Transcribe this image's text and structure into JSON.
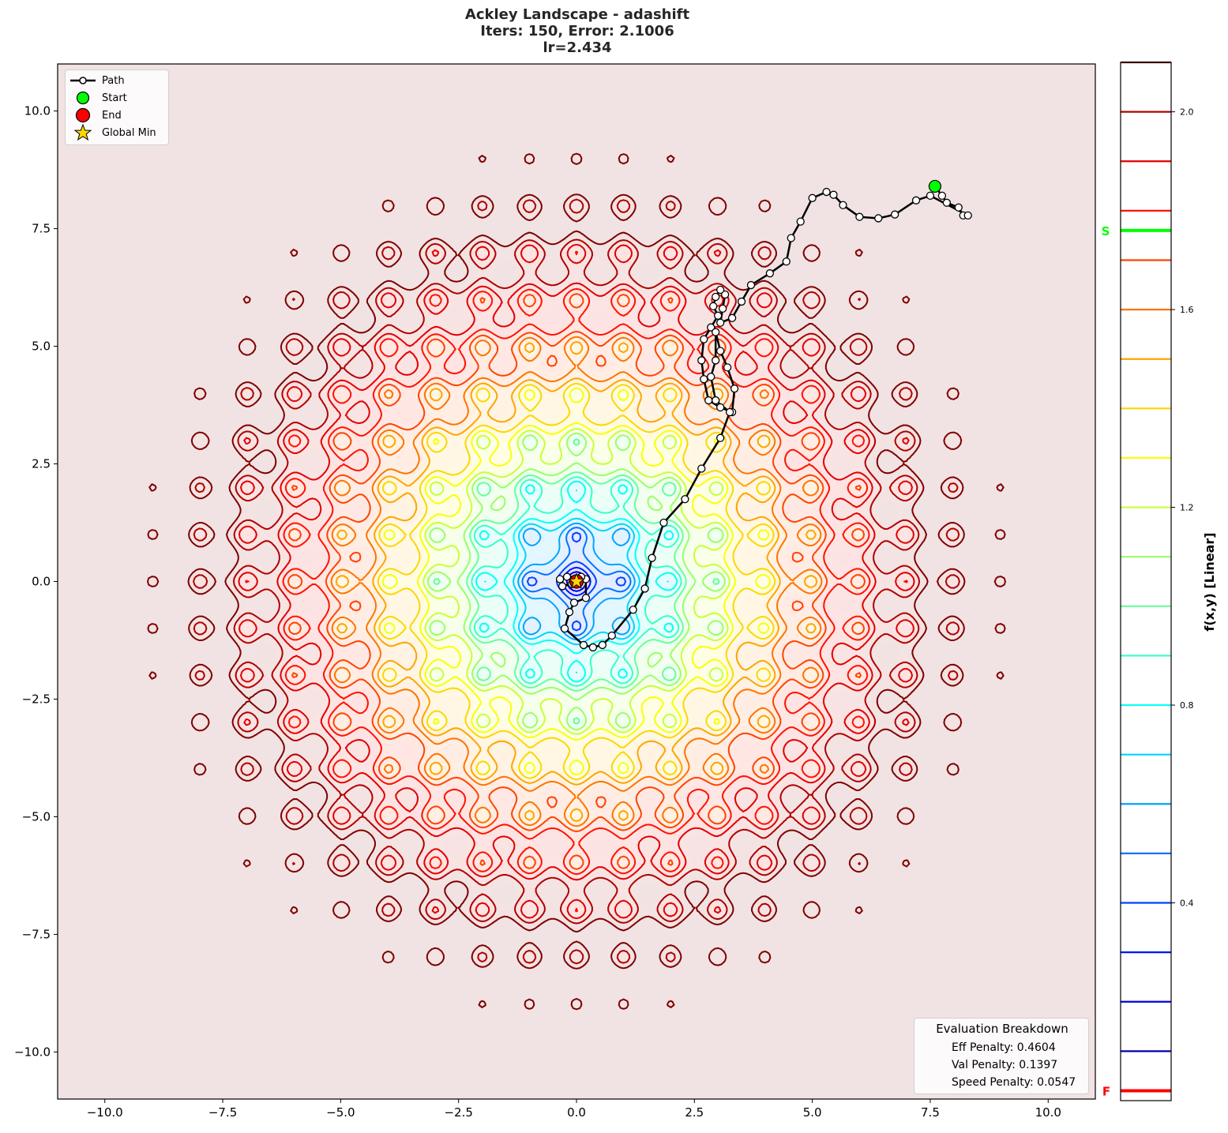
{
  "title": {
    "line1": "Ackley Landscape - adashift",
    "line2": "Iters: 150, Error: 2.1006",
    "line3": "lr=2.434"
  },
  "legend": {
    "items": [
      {
        "label": "Path",
        "symbol": "line-with-white-circle",
        "color": "#000000"
      },
      {
        "label": "Start",
        "symbol": "circle",
        "color": "#00ff00"
      },
      {
        "label": "End",
        "symbol": "circle",
        "color": "#ff0000"
      },
      {
        "label": "Global Min",
        "symbol": "star",
        "color": "#ffd700"
      }
    ]
  },
  "evaluation": {
    "header": "Evaluation Breakdown",
    "rows": [
      "Eff Penalty: 0.4604",
      "Val Penalty: 0.1397",
      "Speed Penalty: 0.0547"
    ]
  },
  "colorbar": {
    "label": "f(x,y) [Linear]",
    "ticks": [
      "2.0",
      "1.6",
      "1.2",
      "0.8",
      "0.4"
    ],
    "start_marker": "S",
    "final_marker": "F",
    "start_color": "#00ff00",
    "final_color": "#ff0000"
  },
  "axes": {
    "x_ticks": [
      "−10.0",
      "−7.5",
      "−5.0",
      "−2.5",
      "0.0",
      "2.5",
      "5.0",
      "7.5",
      "10.0"
    ],
    "y_ticks": [
      "10.0",
      "7.5",
      "5.0",
      "2.5",
      "0.0",
      "−2.5",
      "−5.0",
      "−7.5",
      "−10.0"
    ]
  },
  "chart_data": {
    "type": "contour",
    "title": "Ackley Landscape - adashift\nIters: 150, Error: 2.1006\nlr=2.434",
    "function": "Ackley (scaled, linear)",
    "xlabel": "",
    "ylabel": "",
    "xlim": [
      -11,
      11
    ],
    "ylim": [
      -11,
      11
    ],
    "x_ticks": [
      -10.0,
      -7.5,
      -5.0,
      -2.5,
      0.0,
      2.5,
      5.0,
      7.5,
      10.0
    ],
    "y_ticks": [
      -10.0,
      -7.5,
      -5.0,
      -2.5,
      0.0,
      2.5,
      5.0,
      7.5,
      10.0
    ],
    "grid": false,
    "colormap": "jet",
    "colorbar": {
      "label": "f(x,y) [Linear]",
      "ticks": [
        0.4,
        0.8,
        1.2,
        1.6,
        2.0
      ],
      "range": [
        0.0,
        2.1
      ],
      "levels": [
        0.1,
        0.2,
        0.3,
        0.4,
        0.5,
        0.6,
        0.7,
        0.8,
        0.9,
        1.0,
        1.1,
        1.2,
        1.3,
        1.4,
        1.5,
        1.6,
        1.7,
        1.8,
        1.9,
        2.0,
        2.1
      ],
      "start_value": 1.76,
      "final_value": 0.02
    },
    "iterations": 150,
    "error": 2.1006,
    "learning_rate": 2.434,
    "start": [
      7.6,
      8.4
    ],
    "end": [
      0.0,
      0.0
    ],
    "global_min": [
      0.0,
      0.0
    ],
    "path": [
      [
        7.6,
        8.4
      ],
      [
        7.75,
        8.2
      ],
      [
        7.85,
        8.05
      ],
      [
        8.1,
        7.95
      ],
      [
        8.2,
        7.78
      ],
      [
        8.3,
        7.78
      ],
      [
        7.5,
        8.2
      ],
      [
        7.2,
        8.1
      ],
      [
        6.75,
        7.8
      ],
      [
        6.4,
        7.72
      ],
      [
        6.0,
        7.75
      ],
      [
        5.65,
        8.0
      ],
      [
        5.45,
        8.22
      ],
      [
        5.3,
        8.28
      ],
      [
        5.0,
        8.15
      ],
      [
        4.75,
        7.65
      ],
      [
        4.55,
        7.3
      ],
      [
        4.45,
        6.8
      ],
      [
        4.1,
        6.55
      ],
      [
        3.7,
        6.3
      ],
      [
        3.5,
        5.95
      ],
      [
        3.3,
        5.6
      ],
      [
        3.05,
        5.5
      ],
      [
        3.1,
        5.8
      ],
      [
        3.15,
        6.1
      ],
      [
        3.05,
        6.2
      ],
      [
        2.95,
        6.05
      ],
      [
        2.9,
        5.85
      ],
      [
        3.0,
        5.65
      ],
      [
        2.85,
        5.4
      ],
      [
        2.7,
        5.15
      ],
      [
        2.65,
        4.7
      ],
      [
        2.7,
        4.3
      ],
      [
        2.8,
        3.85
      ],
      [
        3.05,
        3.7
      ],
      [
        3.3,
        3.6
      ],
      [
        3.35,
        4.1
      ],
      [
        3.2,
        4.55
      ],
      [
        3.05,
        4.9
      ],
      [
        2.95,
        5.3
      ],
      [
        2.95,
        4.7
      ],
      [
        2.85,
        4.35
      ],
      [
        2.95,
        3.85
      ],
      [
        3.25,
        3.6
      ],
      [
        3.05,
        3.05
      ],
      [
        2.65,
        2.4
      ],
      [
        2.3,
        1.75
      ],
      [
        1.85,
        1.25
      ],
      [
        1.6,
        0.5
      ],
      [
        1.45,
        -0.15
      ],
      [
        1.2,
        -0.6
      ],
      [
        0.75,
        -1.15
      ],
      [
        0.55,
        -1.35
      ],
      [
        0.35,
        -1.4
      ],
      [
        0.15,
        -1.35
      ],
      [
        -0.25,
        -1.0
      ],
      [
        -0.15,
        -0.65
      ],
      [
        -0.05,
        -0.45
      ],
      [
        0.2,
        -0.35
      ],
      [
        0.2,
        0.05
      ],
      [
        0.1,
        0.1
      ],
      [
        -0.2,
        0.1
      ],
      [
        -0.35,
        0.05
      ],
      [
        -0.3,
        -0.1
      ],
      [
        -0.1,
        -0.05
      ],
      [
        0.0,
        0.0
      ]
    ]
  }
}
